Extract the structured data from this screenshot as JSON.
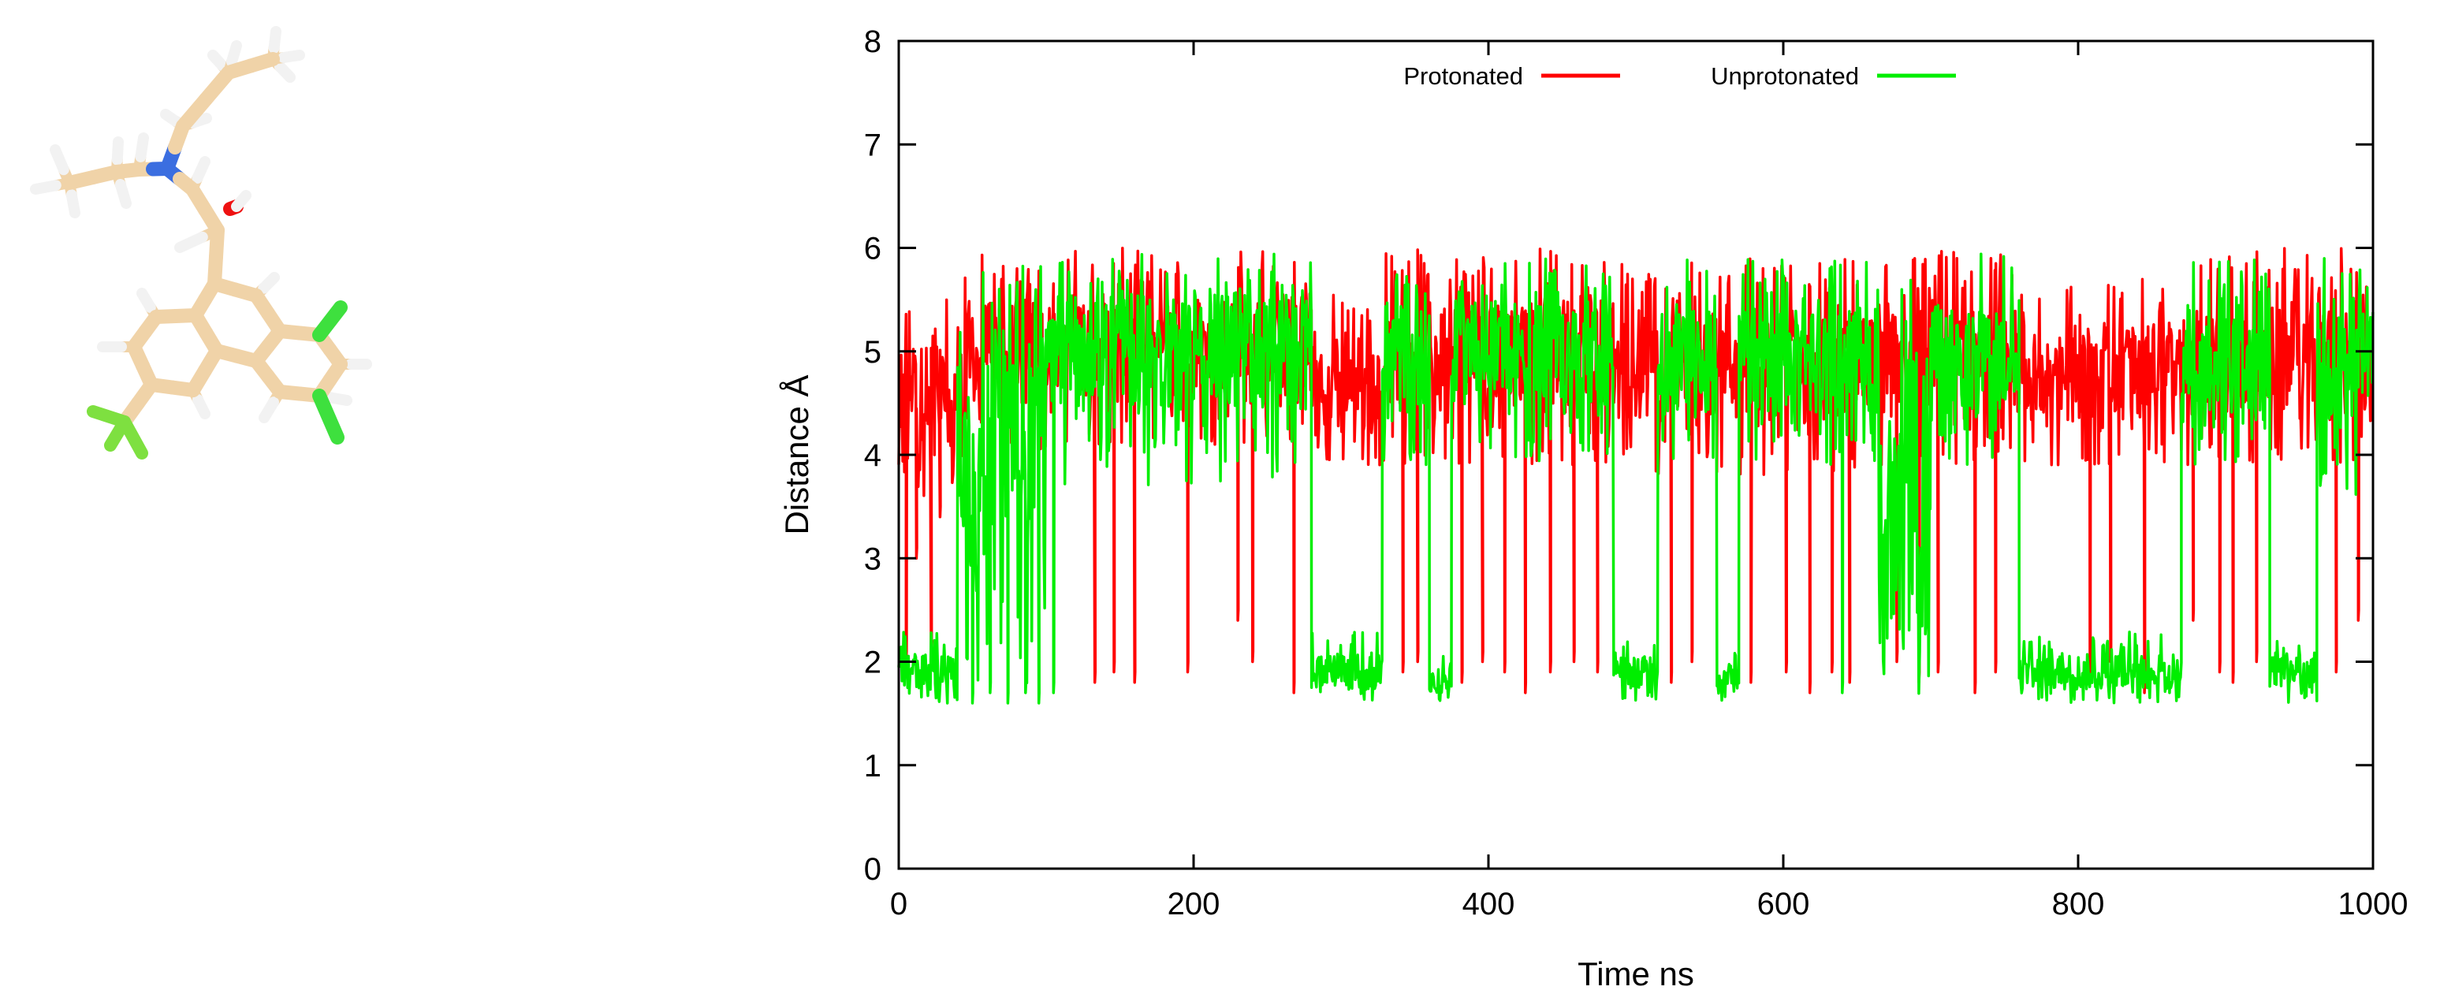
{
  "molecule": {
    "atom_colors": {
      "carbon": "#f0d3a8",
      "hydrogen": "#f2f2f2",
      "nitrogen": "#3b6ee0",
      "oxygen": "#ee1111",
      "chlorine": "#3ee03e",
      "fluorine": "#7ee040"
    }
  },
  "chart_data": {
    "type": "line",
    "xlabel": "Time ns",
    "ylabel": "Distance  Å",
    "xlim": [
      0,
      1000
    ],
    "ylim": [
      0,
      8
    ],
    "xticks": [
      0,
      200,
      400,
      600,
      800,
      1000
    ],
    "yticks": [
      0,
      1,
      2,
      3,
      4,
      5,
      6,
      7,
      8
    ],
    "grid": false,
    "legend_position": "top-center",
    "series": [
      {
        "name": "Protonated",
        "color": "#ff0000",
        "segments": [
          {
            "x0": 0,
            "x1": 45,
            "low": 3.6,
            "high": 5.5,
            "base": 4.6
          },
          {
            "x0": 45,
            "x1": 105,
            "low": 4.0,
            "high": 6.0,
            "base": 5.0
          },
          {
            "x0": 105,
            "x1": 280,
            "low": 4.1,
            "high": 6.0,
            "base": 5.1
          },
          {
            "x0": 280,
            "x1": 330,
            "low": 3.9,
            "high": 5.6,
            "base": 4.6
          },
          {
            "x0": 330,
            "x1": 490,
            "low": 3.9,
            "high": 6.0,
            "base": 5.0
          },
          {
            "x0": 490,
            "x1": 660,
            "low": 3.8,
            "high": 5.9,
            "base": 4.8
          },
          {
            "x0": 660,
            "x1": 760,
            "low": 3.9,
            "high": 6.0,
            "base": 4.9
          },
          {
            "x0": 760,
            "x1": 880,
            "low": 3.9,
            "high": 5.7,
            "base": 4.8
          },
          {
            "x0": 880,
            "x1": 1000,
            "low": 3.9,
            "high": 6.0,
            "base": 4.9
          }
        ],
        "dips": [
          {
            "x": 5,
            "y": 2.0
          },
          {
            "x": 12,
            "y": 3.0
          },
          {
            "x": 22,
            "y": 2.1
          },
          {
            "x": 28,
            "y": 3.4
          },
          {
            "x": 133,
            "y": 1.8
          },
          {
            "x": 146,
            "y": 1.9
          },
          {
            "x": 160,
            "y": 1.8
          },
          {
            "x": 196,
            "y": 1.9
          },
          {
            "x": 230,
            "y": 2.4
          },
          {
            "x": 240,
            "y": 2.0
          },
          {
            "x": 268,
            "y": 1.7
          },
          {
            "x": 342,
            "y": 1.9
          },
          {
            "x": 352,
            "y": 2.0
          },
          {
            "x": 382,
            "y": 1.8
          },
          {
            "x": 396,
            "y": 2.0
          },
          {
            "x": 411,
            "y": 1.9
          },
          {
            "x": 425,
            "y": 1.7
          },
          {
            "x": 442,
            "y": 1.9
          },
          {
            "x": 458,
            "y": 2.0
          },
          {
            "x": 474,
            "y": 1.9
          },
          {
            "x": 524,
            "y": 1.8
          },
          {
            "x": 538,
            "y": 2.0
          },
          {
            "x": 578,
            "y": 1.8
          },
          {
            "x": 602,
            "y": 1.9
          },
          {
            "x": 618,
            "y": 1.7
          },
          {
            "x": 633,
            "y": 1.9
          },
          {
            "x": 645,
            "y": 1.8
          },
          {
            "x": 677,
            "y": 2.0
          },
          {
            "x": 692,
            "y": 1.8
          },
          {
            "x": 705,
            "y": 1.9
          },
          {
            "x": 730,
            "y": 1.7
          },
          {
            "x": 744,
            "y": 1.9
          },
          {
            "x": 808,
            "y": 1.9
          },
          {
            "x": 822,
            "y": 2.0
          },
          {
            "x": 845,
            "y": 1.7
          },
          {
            "x": 878,
            "y": 2.4
          },
          {
            "x": 896,
            "y": 1.9
          },
          {
            "x": 905,
            "y": 1.8
          },
          {
            "x": 921,
            "y": 2.0
          },
          {
            "x": 975,
            "y": 1.9
          },
          {
            "x": 990,
            "y": 2.4
          }
        ]
      },
      {
        "name": "Unprotonated",
        "color": "#00ee00",
        "segments": [
          {
            "x0": 0,
            "x1": 40,
            "low": 1.6,
            "high": 2.3,
            "base": 1.9
          },
          {
            "x0": 40,
            "x1": 55,
            "low": 1.6,
            "high": 5.9,
            "base": 3.6
          },
          {
            "x0": 55,
            "x1": 100,
            "low": 1.6,
            "high": 5.9,
            "base": 4.4
          },
          {
            "x0": 100,
            "x1": 280,
            "low": 3.7,
            "high": 5.95,
            "base": 5.0
          },
          {
            "x0": 280,
            "x1": 328,
            "low": 1.6,
            "high": 2.3,
            "base": 1.9
          },
          {
            "x0": 328,
            "x1": 360,
            "low": 3.9,
            "high": 5.9,
            "base": 4.9
          },
          {
            "x0": 360,
            "x1": 375,
            "low": 1.6,
            "high": 2.1,
            "base": 1.8
          },
          {
            "x0": 375,
            "x1": 485,
            "low": 3.9,
            "high": 5.95,
            "base": 5.0
          },
          {
            "x0": 485,
            "x1": 515,
            "low": 1.6,
            "high": 2.2,
            "base": 1.9
          },
          {
            "x0": 515,
            "x1": 555,
            "low": 3.9,
            "high": 5.9,
            "base": 4.9
          },
          {
            "x0": 555,
            "x1": 570,
            "low": 1.6,
            "high": 2.1,
            "base": 1.8
          },
          {
            "x0": 570,
            "x1": 665,
            "low": 3.9,
            "high": 5.9,
            "base": 4.9
          },
          {
            "x0": 665,
            "x1": 700,
            "low": 1.6,
            "high": 5.7,
            "base": 3.2
          },
          {
            "x0": 700,
            "x1": 760,
            "low": 3.9,
            "high": 5.95,
            "base": 4.9
          },
          {
            "x0": 760,
            "x1": 870,
            "low": 1.6,
            "high": 2.3,
            "base": 1.9
          },
          {
            "x0": 870,
            "x1": 930,
            "low": 3.9,
            "high": 5.9,
            "base": 4.9
          },
          {
            "x0": 930,
            "x1": 962,
            "low": 1.6,
            "high": 2.2,
            "base": 1.9
          },
          {
            "x0": 962,
            "x1": 1000,
            "low": 3.6,
            "high": 5.95,
            "base": 4.9
          }
        ],
        "dips": [
          {
            "x": 50,
            "y": 1.6
          },
          {
            "x": 62,
            "y": 1.7
          },
          {
            "x": 74,
            "y": 1.6
          },
          {
            "x": 86,
            "y": 1.7
          },
          {
            "x": 95,
            "y": 1.6
          },
          {
            "x": 105,
            "y": 1.7
          },
          {
            "x": 640,
            "y": 1.7
          },
          {
            "x": 862,
            "y": 1.7
          }
        ]
      }
    ]
  }
}
